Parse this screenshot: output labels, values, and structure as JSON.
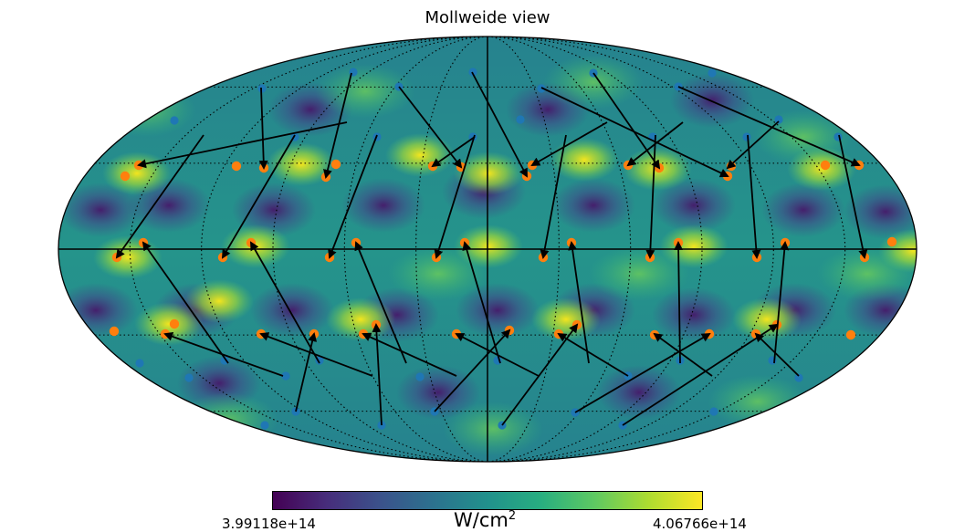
{
  "title": "Mollweide view",
  "colorbar": {
    "min_label": "3.99118e+14",
    "max_label": "4.06766e+14",
    "unit_base": "W/cm",
    "unit_exp": "2",
    "stops": [
      "#440154",
      "#472d7b",
      "#3b528b",
      "#2c728e",
      "#21918c",
      "#28ae80",
      "#5ec962",
      "#addc30",
      "#fde725"
    ]
  },
  "colors": {
    "sphere_border": "#000000",
    "graticule": "#000000",
    "arrow": "#000000",
    "orange_marker": "#ff7f0e",
    "blue_marker": "#1f77b4"
  },
  "map": {
    "projection": "mollweide",
    "graticule_step_deg": 30
  }
}
